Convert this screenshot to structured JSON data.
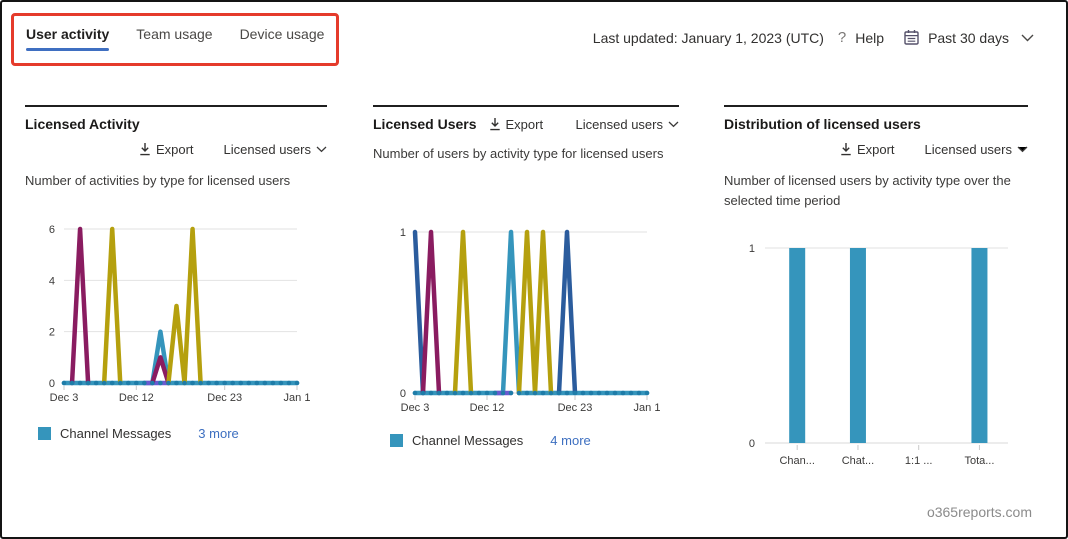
{
  "header": {
    "tabs": [
      {
        "label": "User activity",
        "active": true
      },
      {
        "label": "Team usage",
        "active": false
      },
      {
        "label": "Device usage",
        "active": false
      }
    ],
    "last_updated": "Last updated: January 1, 2023 (UTC)",
    "help_icon_glyph": "?",
    "help_label": "Help",
    "period_label": "Past 30 days",
    "colors": {
      "tab_underline": "#3f6fc1",
      "annotation_red": "#e53b2b"
    }
  },
  "panels": [
    {
      "title": "Licensed Activity",
      "export_label": "Export",
      "filter_label": "Licensed users",
      "subtitle": "Number of activities by type for licensed users",
      "legend_label": "Channel Messages",
      "legend_color": "#3595bc",
      "more_link": "3 more"
    },
    {
      "title": "Licensed Users",
      "export_label": "Export",
      "filter_label": "Licensed users",
      "subtitle": "Number of users by activity type for licensed users",
      "legend_label": "Channel Messages",
      "legend_color": "#3595bc",
      "more_link": "4 more"
    },
    {
      "title": "Distribution of licensed users",
      "export_label": "Export",
      "filter_label": "Licensed users",
      "subtitle": "Number of licensed users by activity type over the selected time period"
    }
  ],
  "footer": {
    "watermark": "o365reports.com"
  },
  "chart_data": [
    {
      "type": "line",
      "title": "Licensed Activity",
      "ylabel": "",
      "xlabel": "",
      "days": 30,
      "ylim": [
        0,
        6
      ],
      "y_ticks": [
        0,
        2,
        4,
        6
      ],
      "x_tick_labels": [
        {
          "day": 0,
          "label": "Dec 3"
        },
        {
          "day": 9,
          "label": "Dec 12"
        },
        {
          "day": 20,
          "label": "Dec 23"
        },
        {
          "day": 29,
          "label": "Jan 1"
        }
      ],
      "grid_color": "#e2e2e2",
      "dot_color": "#1e7ca8",
      "series": [
        {
          "name": "channel-messages",
          "color": "#3595bc",
          "values": [
            0,
            0,
            0,
            0,
            0,
            0,
            0,
            0,
            0,
            0,
            0,
            0,
            2,
            0,
            0,
            0,
            0,
            0,
            0,
            0,
            0,
            0,
            0,
            0,
            0,
            0,
            0,
            0,
            0,
            0
          ]
        },
        {
          "name": "activity-violet",
          "color": "#6a5ad0",
          "values": [
            null,
            null,
            null,
            null,
            null,
            null,
            null,
            null,
            null,
            null,
            0,
            0,
            0,
            0,
            null,
            null,
            null,
            null,
            null,
            null,
            null,
            null,
            null,
            null,
            null,
            null,
            null,
            null,
            null,
            null
          ]
        },
        {
          "name": "activity-magenta",
          "color": "#8a1c60",
          "values": [
            null,
            0,
            6,
            0,
            null,
            null,
            null,
            null,
            null,
            null,
            null,
            0,
            1,
            0,
            null,
            null,
            null,
            null,
            null,
            null,
            null,
            null,
            null,
            null,
            null,
            null,
            null,
            null,
            null,
            null
          ]
        },
        {
          "name": "activity-yellow",
          "color": "#b5a00e",
          "values": [
            null,
            null,
            null,
            null,
            null,
            0,
            6,
            0,
            null,
            null,
            null,
            null,
            null,
            0,
            3,
            0,
            6,
            0,
            null,
            null,
            null,
            null,
            null,
            null,
            null,
            null,
            null,
            null,
            null,
            null
          ]
        }
      ]
    },
    {
      "type": "line",
      "title": "Licensed Users",
      "ylabel": "",
      "xlabel": "",
      "days": 30,
      "ylim": [
        0,
        1
      ],
      "y_ticks": [
        0,
        1
      ],
      "x_tick_labels": [
        {
          "day": 0,
          "label": "Dec 3"
        },
        {
          "day": 9,
          "label": "Dec 12"
        },
        {
          "day": 20,
          "label": "Dec 23"
        },
        {
          "day": 29,
          "label": "Jan 1"
        }
      ],
      "grid_color": "#e2e2e2",
      "dot_color": "#1e7ca8",
      "series": [
        {
          "name": "channel-messages",
          "color": "#3595bc",
          "values": [
            0,
            0,
            0,
            0,
            0,
            0,
            0,
            0,
            0,
            0,
            0,
            0,
            1,
            0,
            0,
            0,
            0,
            0,
            0,
            0,
            0,
            0,
            0,
            0,
            0,
            0,
            0,
            0,
            0,
            0
          ]
        },
        {
          "name": "users-violet",
          "color": "#6a5ad0",
          "values": [
            null,
            null,
            null,
            null,
            null,
            null,
            null,
            null,
            null,
            null,
            0,
            0,
            0,
            null,
            null,
            null,
            null,
            null,
            null,
            null,
            null,
            null,
            null,
            null,
            null,
            null,
            null,
            null,
            null,
            null
          ]
        },
        {
          "name": "users-blue",
          "color": "#2b5c9d",
          "values": [
            1,
            0,
            null,
            null,
            null,
            null,
            null,
            null,
            null,
            null,
            null,
            null,
            null,
            null,
            null,
            null,
            null,
            null,
            0,
            1,
            0,
            null,
            null,
            null,
            null,
            null,
            null,
            null,
            null,
            null
          ]
        },
        {
          "name": "users-magenta",
          "color": "#8a1c60",
          "values": [
            null,
            0,
            1,
            0,
            null,
            null,
            null,
            null,
            null,
            null,
            null,
            null,
            null,
            null,
            null,
            null,
            null,
            null,
            null,
            null,
            null,
            null,
            null,
            null,
            null,
            null,
            null,
            null,
            null,
            null
          ]
        },
        {
          "name": "users-yellow",
          "color": "#b5a00e",
          "values": [
            null,
            null,
            null,
            null,
            null,
            0,
            1,
            0,
            null,
            null,
            null,
            null,
            null,
            0,
            1,
            0,
            1,
            0,
            null,
            null,
            null,
            null,
            null,
            null,
            null,
            null,
            null,
            null,
            null,
            null
          ]
        }
      ]
    },
    {
      "type": "bar",
      "title": "Distribution of licensed users",
      "ylabel": "",
      "xlabel": "",
      "categories": [
        "Chan...",
        "Chat...",
        "1:1 ...",
        "Tota..."
      ],
      "values": [
        1,
        1,
        0,
        1
      ],
      "ylim": [
        0,
        1
      ],
      "y_ticks": [
        0,
        1
      ],
      "bar_color": "#3595bc",
      "grid_color": "#e2e2e2"
    }
  ]
}
